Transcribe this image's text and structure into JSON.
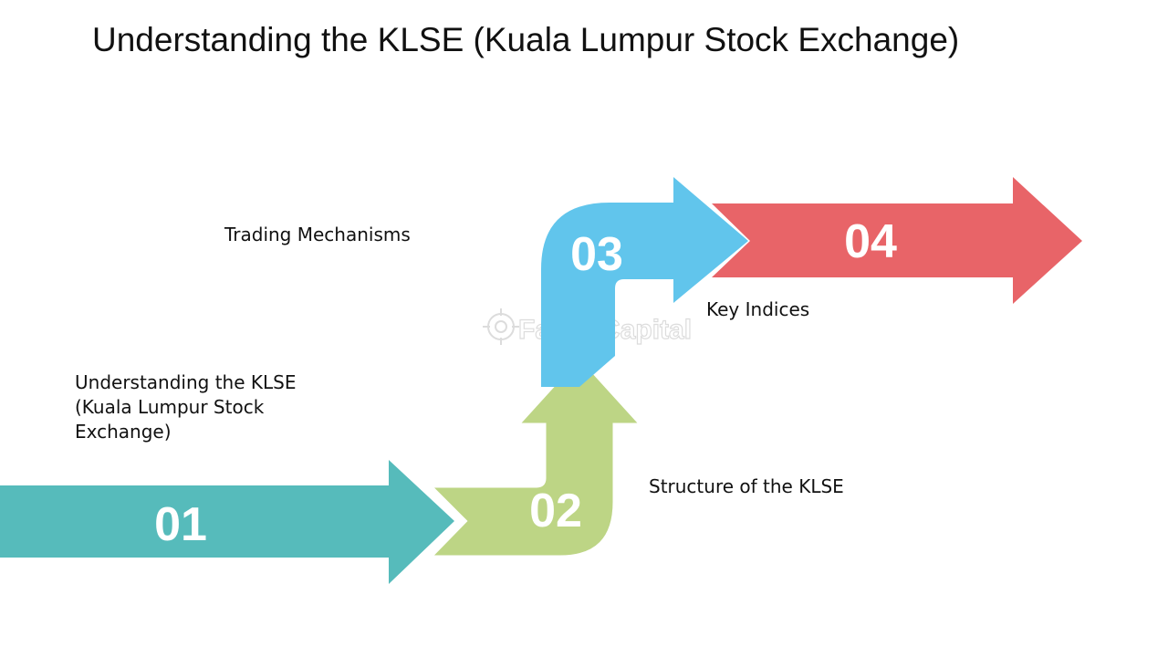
{
  "title": "Understanding the KLSE (Kuala Lumpur Stock Exchange)",
  "steps": [
    {
      "number": "01",
      "label": "Understanding the KLSE (Kuala Lumpur Stock Exchange)",
      "color": "#56BBBB"
    },
    {
      "number": "02",
      "label": "Structure of the KLSE",
      "color": "#BDD585"
    },
    {
      "number": "03",
      "label": "Trading Mechanisms",
      "color": "#61C5EC"
    },
    {
      "number": "04",
      "label": "Key Indices",
      "color": "#E86468"
    }
  ],
  "watermark": "FasterCapital"
}
